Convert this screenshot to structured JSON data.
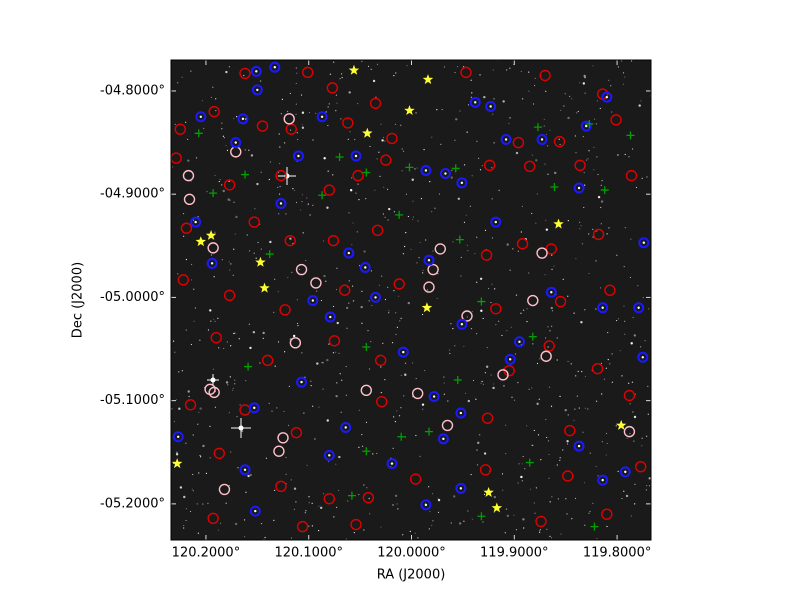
{
  "chart_data": {
    "type": "scatter",
    "xlabel": "RA (J2000)",
    "ylabel": "Dec (J2000)",
    "xlim": [
      120.234,
      119.767
    ],
    "ylim": [
      -5.235,
      -4.77
    ],
    "xticks": [
      {
        "value": 120.2,
        "label": "120.2000°"
      },
      {
        "value": 120.1,
        "label": "120.1000°"
      },
      {
        "value": 120.0,
        "label": "120.0000°"
      },
      {
        "value": 119.9,
        "label": "119.9000°"
      },
      {
        "value": 119.8,
        "label": "119.8000°"
      }
    ],
    "yticks": [
      {
        "value": -4.8,
        "label": "-04.8000°"
      },
      {
        "value": -4.9,
        "label": "-04.9000°"
      },
      {
        "value": -5.0,
        "label": "-05.0000°"
      },
      {
        "value": -5.1,
        "label": "-05.1000°"
      },
      {
        "value": -5.2,
        "label": "-05.2000°"
      }
    ],
    "background": "#1a1a1a",
    "series": [
      {
        "marker": "circle",
        "color": "#e00000",
        "x": [
          120.162,
          120.101,
          120.077,
          120.035,
          119.947,
          119.87,
          119.814,
          120.225,
          120.192,
          120.145,
          120.117,
          120.062,
          120.019,
          119.896,
          119.856,
          119.801,
          120.229,
          120.177,
          120.127,
          120.08,
          120.052,
          120.025,
          119.924,
          119.885,
          119.836,
          119.786,
          120.219,
          120.153,
          120.118,
          120.076,
          120.033,
          119.927,
          119.892,
          119.864,
          119.818,
          120.222,
          120.177,
          120.123,
          120.065,
          120.012,
          119.918,
          119.855,
          119.807,
          120.19,
          120.14,
          120.075,
          120.03,
          119.905,
          119.866,
          119.819,
          120.215,
          120.162,
          120.112,
          120.029,
          119.926,
          119.846,
          119.788,
          120.187,
          120.127,
          120.08,
          120.042,
          119.996,
          119.928,
          119.848,
          119.777,
          120.193,
          120.106,
          120.054,
          119.874,
          119.81
        ],
        "y": [
          -4.783,
          -4.782,
          -4.797,
          -4.812,
          -4.782,
          -4.785,
          -4.803,
          -4.837,
          -4.82,
          -4.834,
          -4.837,
          -4.831,
          -4.846,
          -4.85,
          -4.849,
          -4.828,
          -4.865,
          -4.891,
          -4.882,
          -4.896,
          -4.882,
          -4.867,
          -4.872,
          -4.873,
          -4.872,
          -4.882,
          -4.933,
          -4.927,
          -4.945,
          -4.945,
          -4.935,
          -4.959,
          -4.948,
          -4.953,
          -4.939,
          -4.983,
          -4.998,
          -5.012,
          -4.993,
          -4.987,
          -5.011,
          -5.004,
          -4.993,
          -5.039,
          -5.061,
          -5.042,
          -5.061,
          -5.071,
          -5.047,
          -5.069,
          -5.104,
          -5.109,
          -5.131,
          -5.101,
          -5.117,
          -5.129,
          -5.095,
          -5.151,
          -5.183,
          -5.195,
          -5.194,
          -5.176,
          -5.167,
          -5.173,
          -5.164,
          -5.214,
          -5.222,
          -5.22,
          -5.217,
          -5.21
        ]
      },
      {
        "marker": "circle",
        "color": "#ffc0cb",
        "x": [
          120.217,
          120.216,
          120.193,
          120.171,
          120.119,
          120.107,
          120.093,
          119.972,
          119.979,
          119.983,
          119.946,
          119.882,
          119.873,
          120.196,
          120.192,
          120.125,
          120.129,
          120.182,
          119.869,
          119.911,
          119.788,
          119.965,
          119.994,
          120.113,
          120.044
        ],
        "y": [
          -4.882,
          -4.905,
          -4.952,
          -4.859,
          -4.827,
          -4.973,
          -4.986,
          -4.953,
          -4.973,
          -4.99,
          -5.018,
          -5.003,
          -4.957,
          -5.089,
          -5.092,
          -5.136,
          -5.149,
          -5.186,
          -5.057,
          -5.075,
          -5.13,
          -5.124,
          -5.093,
          -5.044,
          -5.09
        ]
      },
      {
        "marker": "dot-circle",
        "color": "#1a1aff",
        "x": [
          120.151,
          120.133,
          120.15,
          120.205,
          120.164,
          120.087,
          120.171,
          120.054,
          119.938,
          119.923,
          119.908,
          119.83,
          119.81,
          119.967,
          119.951,
          119.986,
          119.918,
          119.837,
          119.873,
          120.21,
          120.127,
          120.11,
          120.194,
          120.061,
          119.983,
          120.045,
          119.864,
          119.814,
          119.951,
          120.096,
          120.079,
          120.035,
          120.008,
          119.904,
          119.895,
          120.107,
          119.978,
          120.153,
          120.064,
          119.969,
          119.952,
          120.227,
          120.162,
          120.08,
          120.019,
          119.952,
          119.814,
          119.792,
          120.152,
          119.986,
          119.837,
          119.775,
          119.774,
          119.779
        ],
        "y": [
          -4.781,
          -4.777,
          -4.799,
          -4.825,
          -4.827,
          -4.825,
          -4.85,
          -4.863,
          -4.811,
          -4.815,
          -4.847,
          -4.834,
          -4.806,
          -4.88,
          -4.889,
          -4.877,
          -4.927,
          -4.894,
          -4.847,
          -4.927,
          -4.909,
          -4.863,
          -4.967,
          -4.957,
          -4.964,
          -4.971,
          -4.995,
          -5.01,
          -5.026,
          -5.003,
          -5.019,
          -5.0,
          -5.053,
          -5.06,
          -5.043,
          -5.082,
          -5.096,
          -5.107,
          -5.126,
          -5.137,
          -5.112,
          -5.135,
          -5.167,
          -5.153,
          -5.161,
          -5.185,
          -5.177,
          -5.169,
          -5.207,
          -5.201,
          -5.144,
          -5.058,
          -4.947,
          -5.01
        ]
      },
      {
        "marker": "plus",
        "color": "#00a000",
        "x": [
          120.207,
          120.193,
          119.957,
          119.877,
          119.787,
          120.002,
          120.012,
          119.953,
          120.138,
          120.087,
          120.044,
          120.159,
          119.882,
          119.955,
          119.932,
          120.01,
          120.044,
          119.983,
          119.885,
          120.058,
          119.932,
          119.822,
          119.861,
          119.812,
          120.162,
          119.827,
          120.044,
          120.07
        ],
        "y": [
          -4.841,
          -4.899,
          -4.875,
          -4.835,
          -4.843,
          -4.874,
          -4.92,
          -4.944,
          -4.958,
          -4.901,
          -5.048,
          -5.067,
          -5.038,
          -5.08,
          -5.004,
          -5.135,
          -5.149,
          -5.13,
          -5.16,
          -5.192,
          -5.212,
          -5.222,
          -4.893,
          -4.896,
          -4.881,
          -4.832,
          -4.879,
          -4.864
        ]
      },
      {
        "marker": "star",
        "color": "#ffff33",
        "x": [
          120.056,
          119.984,
          120.002,
          120.043,
          119.857,
          120.195,
          120.205,
          120.147,
          120.143,
          119.985,
          120.228,
          119.925,
          119.917,
          119.796
        ],
        "y": [
          -4.78,
          -4.789,
          -4.819,
          -4.841,
          -4.929,
          -4.94,
          -4.946,
          -4.966,
          -4.991,
          -5.01,
          -5.161,
          -5.189,
          -5.204,
          -5.124
        ]
      }
    ]
  }
}
